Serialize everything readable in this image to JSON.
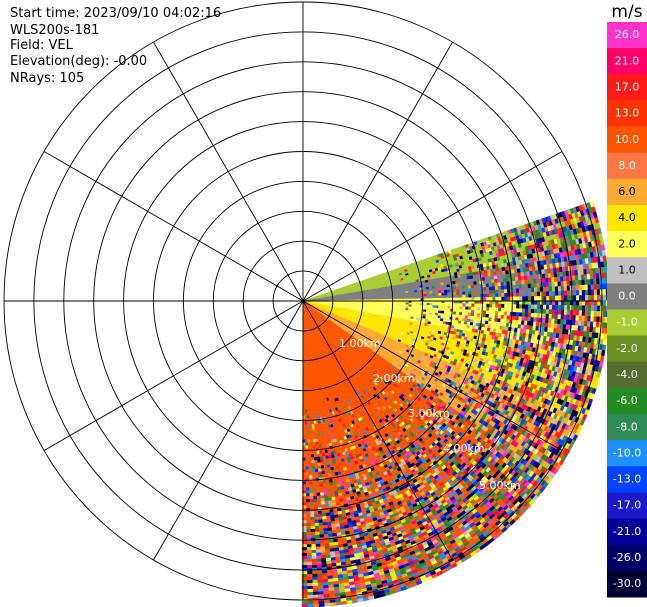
{
  "header": {
    "start_time": "Start time: 2023/09/10 04:02:16",
    "instrument": "WLS200s-181",
    "field": "Field: VEL",
    "elevation": "Elevation(deg): -0.00",
    "nrays": "NRays: 105"
  },
  "chart_data": {
    "type": "heatmap",
    "projection": "polar-ppi",
    "title": "",
    "units": "m/s",
    "range_ring_labels": [
      "1.00km",
      "2.00km",
      "3.00km",
      "4.00km",
      "5.00km"
    ],
    "range_rings_km": [
      0.5,
      1,
      1.5,
      2,
      2.5,
      3,
      3.5,
      4,
      4.5,
      5
    ],
    "spokes_every_deg": 30,
    "sector_azimuth_deg": [
      71,
      180
    ],
    "max_range_km": 5.1,
    "colorbar": {
      "ticks": [
        "26.0",
        "21.0",
        "17.0",
        "13.0",
        "10.0",
        "8.0",
        "6.0",
        "4.0",
        "2.0",
        "1.0",
        "0.0",
        "-1.0",
        "-2.0",
        "-4.0",
        "-6.0",
        "-8.0",
        "-10.0",
        "-13.0",
        "-17.0",
        "-21.0",
        "-26.0",
        "-30.0"
      ],
      "colors": [
        "#ff33cc",
        "#ff0066",
        "#ff1a1a",
        "#ff3300",
        "#ff5500",
        "#ff7744",
        "#ffaa33",
        "#ffe600",
        "#ffff55",
        "#c0c0c0",
        "#7f7f7f",
        "#aacc33",
        "#6b8e23",
        "#556b2f",
        "#228b22",
        "#2e8b57",
        "#1e90ff",
        "#0044ff",
        "#1a1acc",
        "#000099",
        "#000066",
        "#000033"
      ]
    }
  }
}
